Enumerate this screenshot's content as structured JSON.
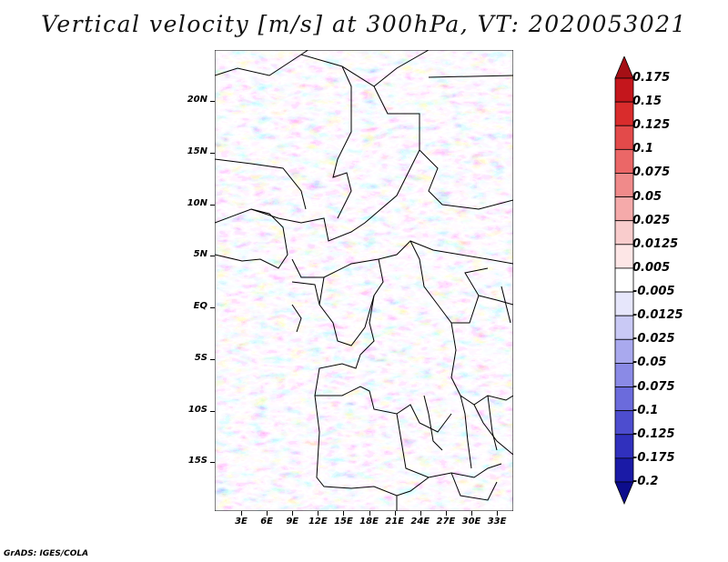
{
  "title": "Vertical velocity [m/s] at 300hPa, VT: 2020053021",
  "credit": "GrADS: IGES/COLA",
  "map": {
    "lat_labels": [
      "20N",
      "15N",
      "10N",
      "5N",
      "EQ",
      "5S",
      "10S",
      "15S"
    ],
    "lat_values": [
      20,
      15,
      10,
      5,
      0,
      -5,
      -10,
      -15
    ],
    "lon_labels": [
      "3E",
      "6E",
      "9E",
      "12E",
      "15E",
      "18E",
      "21E",
      "24E",
      "27E",
      "30E",
      "33E"
    ],
    "lon_values": [
      3,
      6,
      9,
      12,
      15,
      18,
      21,
      24,
      27,
      30,
      33
    ]
  },
  "colorbar": {
    "labels": [
      "0.175",
      "0.15",
      "0.125",
      "0.1",
      "0.075",
      "0.05",
      "0.025",
      "0.0125",
      "0.005",
      "-0.005",
      "-0.0125",
      "-0.025",
      "-0.05",
      "-0.075",
      "-0.1",
      "-0.125",
      "-0.175",
      "-0.2"
    ],
    "colors": [
      "#a50f15",
      "#c4161c",
      "#d92c2c",
      "#e34a4a",
      "#eb6767",
      "#f08a8a",
      "#f5aaaa",
      "#f9cccc",
      "#fde6e6",
      "#ffffff",
      "#e6e6fb",
      "#c9c9f5",
      "#a9a9ee",
      "#8a8ae6",
      "#6b6bdc",
      "#4d4dcf",
      "#3030bd",
      "#1a1aa6",
      "#0d0d8c"
    ]
  }
}
